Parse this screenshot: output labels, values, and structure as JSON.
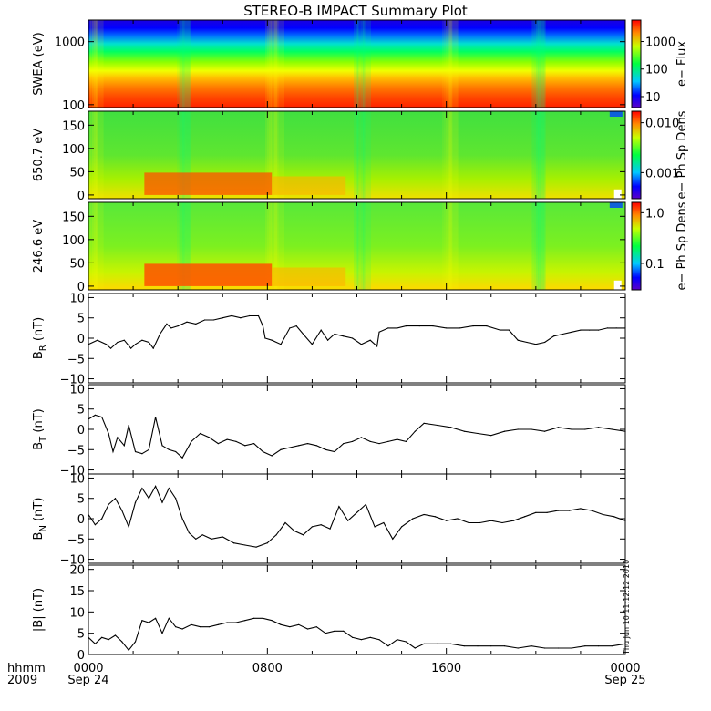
{
  "title": "STEREO-B IMPACT Summary Plot",
  "stamp": "Thu Jun 10 11:12:12 2010",
  "chart_data": [
    {
      "id": "swea",
      "type": "heatmap",
      "ylabel": "SWEA (eV)",
      "yscale": "log",
      "ylim": [
        90,
        2200
      ],
      "yticks": [
        {
          "v": 100,
          "label": "100"
        },
        {
          "v": 1000,
          "label": "1000"
        }
      ],
      "colorbar": {
        "label": "e− Flux",
        "scale": "log",
        "range": [
          4,
          6000
        ],
        "ticks": [
          {
            "v": 10,
            "label": "10"
          },
          {
            "v": 100,
            "label": "100"
          },
          {
            "v": 1000,
            "label": "1000"
          }
        ]
      }
    },
    {
      "id": "pad650",
      "type": "heatmap",
      "ylabel": "650.7 eV",
      "ylim": [
        -8,
        180
      ],
      "yticks": [
        {
          "v": 0,
          "label": "0"
        },
        {
          "v": 50,
          "label": "50"
        },
        {
          "v": 100,
          "label": "100"
        },
        {
          "v": 150,
          "label": "150"
        }
      ],
      "colorbar": {
        "label": "e− Ph Sp Dens",
        "scale": "log",
        "range": [
          0.0003,
          0.017
        ],
        "ticks": [
          {
            "v": 0.001,
            "label": "0.001"
          },
          {
            "v": 0.01,
            "label": "0.010"
          }
        ]
      }
    },
    {
      "id": "pad246",
      "type": "heatmap",
      "ylabel": "246.6 eV",
      "ylim": [
        -8,
        180
      ],
      "yticks": [
        {
          "v": 0,
          "label": "0"
        },
        {
          "v": 50,
          "label": "50"
        },
        {
          "v": 100,
          "label": "100"
        },
        {
          "v": 150,
          "label": "150"
        }
      ],
      "colorbar": {
        "label": "e− Ph Sp Dens",
        "scale": "log",
        "range": [
          0.03,
          1.6
        ],
        "ticks": [
          {
            "v": 0.1,
            "label": "0.1"
          },
          {
            "v": 1.0,
            "label": "1.0"
          }
        ]
      }
    },
    {
      "id": "br",
      "type": "line",
      "ylabel_main": "B",
      "ylabel_sub": "R",
      "ylabel_unit": " (nT)",
      "ylim": [
        -11,
        11
      ],
      "yticks": [
        {
          "v": -10,
          "label": "−10"
        },
        {
          "v": -5,
          "label": "−5"
        },
        {
          "v": 0,
          "label": "0"
        },
        {
          "v": 5,
          "label": "5"
        },
        {
          "v": 10,
          "label": "10"
        }
      ],
      "x": [
        0,
        0.4,
        0.8,
        1.0,
        1.3,
        1.6,
        1.9,
        2.1,
        2.4,
        2.7,
        2.9,
        3.2,
        3.5,
        3.7,
        4.0,
        4.4,
        4.8,
        5.2,
        5.6,
        6.0,
        6.4,
        6.8,
        7.2,
        7.6,
        7.8,
        7.9,
        8.2,
        8.6,
        9.0,
        9.3,
        9.6,
        10.0,
        10.4,
        10.7,
        11.0,
        11.4,
        11.8,
        12.2,
        12.6,
        12.9,
        13.0,
        13.4,
        13.8,
        14.2,
        14.8,
        15.4,
        16.0,
        16.6,
        17.2,
        17.8,
        18.4,
        18.8,
        19.2,
        19.6,
        20.0,
        20.4,
        20.8,
        21.2,
        21.6,
        22.0,
        22.4,
        22.8,
        23.2,
        23.6,
        24.0
      ],
      "y": [
        -1.5,
        -0.5,
        -1.5,
        -2.5,
        -1,
        -0.5,
        -2.5,
        -1.5,
        -0.5,
        -1,
        -2.5,
        1,
        3.5,
        2.5,
        3,
        4,
        3.5,
        4.5,
        4.5,
        5,
        5.5,
        5,
        5.5,
        5.5,
        3,
        0,
        -0.5,
        -1.5,
        2.5,
        3,
        1,
        -1.5,
        2,
        -0.5,
        1,
        0.5,
        0,
        -1.5,
        -0.5,
        -2,
        1.5,
        2.5,
        2.5,
        3,
        3,
        3,
        2.5,
        2.5,
        3,
        3,
        2,
        2,
        -0.5,
        -1,
        -1.5,
        -1,
        0.5,
        1,
        1.5,
        2,
        2,
        2,
        2.5,
        2.5,
        2.5
      ]
    },
    {
      "id": "bt",
      "type": "line",
      "ylabel_main": "B",
      "ylabel_sub": "T",
      "ylabel_unit": " (nT)",
      "ylim": [
        -11,
        11
      ],
      "yticks": [
        {
          "v": -10,
          "label": "−10"
        },
        {
          "v": -5,
          "label": "−5"
        },
        {
          "v": 0,
          "label": "0"
        },
        {
          "v": 5,
          "label": "5"
        },
        {
          "v": 10,
          "label": "10"
        }
      ],
      "x": [
        0,
        0.3,
        0.6,
        0.9,
        1.1,
        1.3,
        1.6,
        1.8,
        2.1,
        2.4,
        2.7,
        3.0,
        3.3,
        3.6,
        3.9,
        4.2,
        4.6,
        5.0,
        5.4,
        5.8,
        6.2,
        6.6,
        7.0,
        7.4,
        7.8,
        8.2,
        8.6,
        9.0,
        9.4,
        9.8,
        10.2,
        10.6,
        11.0,
        11.4,
        11.8,
        12.2,
        12.6,
        13.0,
        13.4,
        13.8,
        14.2,
        14.6,
        15.0,
        15.6,
        16.2,
        16.8,
        17.4,
        18.0,
        18.6,
        19.2,
        19.8,
        20.4,
        21.0,
        21.6,
        22.2,
        22.8,
        23.4,
        24.0
      ],
      "y": [
        2.5,
        3.5,
        3,
        -1,
        -5.5,
        -2,
        -4,
        1,
        -5.5,
        -6,
        -5,
        3,
        -4,
        -5,
        -5.5,
        -7,
        -3,
        -1,
        -2,
        -3.5,
        -2.5,
        -3,
        -4,
        -3.5,
        -5.5,
        -6.5,
        -5,
        -4.5,
        -4,
        -3.5,
        -4,
        -5,
        -5.5,
        -3.5,
        -3,
        -2,
        -3,
        -3.5,
        -3,
        -2.5,
        -3,
        -0.5,
        1.5,
        1,
        0.5,
        -0.5,
        -1,
        -1.5,
        -0.5,
        0,
        0,
        -0.5,
        0.5,
        0,
        0,
        0.5,
        0,
        -0.5
      ]
    },
    {
      "id": "bn",
      "type": "line",
      "ylabel_main": "B",
      "ylabel_sub": "N",
      "ylabel_unit": " (nT)",
      "ylim": [
        -11,
        11
      ],
      "yticks": [
        {
          "v": -10,
          "label": "−10"
        },
        {
          "v": -5,
          "label": "−5"
        },
        {
          "v": 0,
          "label": "0"
        },
        {
          "v": 5,
          "label": "5"
        },
        {
          "v": 10,
          "label": "10"
        }
      ],
      "x": [
        0,
        0.3,
        0.6,
        0.9,
        1.2,
        1.5,
        1.8,
        2.1,
        2.4,
        2.7,
        3.0,
        3.3,
        3.6,
        3.9,
        4.2,
        4.5,
        4.8,
        5.1,
        5.5,
        6.0,
        6.5,
        7.0,
        7.5,
        8.0,
        8.4,
        8.8,
        9.2,
        9.6,
        10.0,
        10.4,
        10.8,
        11.2,
        11.6,
        12.0,
        12.4,
        12.8,
        13.2,
        13.6,
        14.0,
        14.5,
        15.0,
        15.5,
        16.0,
        16.5,
        17.0,
        17.5,
        18.0,
        18.5,
        19.0,
        19.5,
        20.0,
        20.5,
        21.0,
        21.5,
        22.0,
        22.5,
        23.0,
        23.5,
        24.0
      ],
      "y": [
        1,
        -1.5,
        0,
        3.5,
        5,
        2,
        -2,
        4,
        7.5,
        5,
        8,
        4,
        7.5,
        5,
        0,
        -3.5,
        -5,
        -4,
        -5,
        -4.5,
        -6,
        -6.5,
        -7,
        -6,
        -4,
        -1,
        -3,
        -4,
        -2,
        -1.5,
        -2.5,
        3,
        -0.5,
        1.5,
        3.5,
        -2,
        -1,
        -5,
        -2,
        0,
        1,
        0.5,
        -0.5,
        0,
        -1,
        -1,
        -0.5,
        -1,
        -0.5,
        0.5,
        1.5,
        1.5,
        2,
        2,
        2.5,
        2,
        1,
        0.5,
        -0.5
      ]
    },
    {
      "id": "bmag",
      "type": "line",
      "ylabel_main": "|B| (nT)",
      "ylim": [
        0,
        21
      ],
      "yticks": [
        {
          "v": 0,
          "label": "0"
        },
        {
          "v": 5,
          "label": "5"
        },
        {
          "v": 10,
          "label": "10"
        },
        {
          "v": 15,
          "label": "15"
        },
        {
          "v": 20,
          "label": "20"
        }
      ],
      "x": [
        0,
        0.3,
        0.6,
        0.9,
        1.2,
        1.5,
        1.8,
        2.1,
        2.4,
        2.7,
        3.0,
        3.3,
        3.6,
        3.9,
        4.2,
        4.6,
        5.0,
        5.4,
        5.8,
        6.2,
        6.6,
        7.0,
        7.4,
        7.8,
        8.2,
        8.6,
        9.0,
        9.4,
        9.8,
        10.2,
        10.6,
        11.0,
        11.4,
        11.8,
        12.2,
        12.6,
        13.0,
        13.4,
        13.8,
        14.2,
        14.6,
        15.0,
        15.6,
        16.2,
        16.8,
        17.4,
        18.0,
        18.6,
        19.2,
        19.8,
        20.4,
        21.0,
        21.6,
        22.2,
        22.8,
        23.4,
        24.0
      ],
      "y": [
        4,
        2.5,
        4,
        3.5,
        4.5,
        3,
        1,
        3,
        8,
        7.5,
        8.5,
        5,
        8.5,
        6.5,
        6,
        7,
        6.5,
        6.5,
        7,
        7.5,
        7.5,
        8,
        8.5,
        8.5,
        8,
        7,
        6.5,
        7,
        6,
        6.5,
        5,
        5.5,
        5.5,
        4,
        3.5,
        4,
        3.5,
        2,
        3.5,
        3,
        1.5,
        2.5,
        2.5,
        2.5,
        2,
        2,
        2,
        2,
        1.5,
        2,
        1.5,
        1.5,
        1.5,
        2,
        2,
        2,
        2.5
      ]
    }
  ],
  "xaxis": {
    "range_hours": [
      0,
      24
    ],
    "row1_label": "hhmm",
    "row2_label": "2009",
    "ticks": [
      {
        "h": 0,
        "top": "0000",
        "bottom": "Sep 24"
      },
      {
        "h": 8,
        "top": "0800",
        "bottom": ""
      },
      {
        "h": 16,
        "top": "1600",
        "bottom": ""
      },
      {
        "h": 24,
        "top": "0000",
        "bottom": "Sep 25"
      }
    ]
  }
}
